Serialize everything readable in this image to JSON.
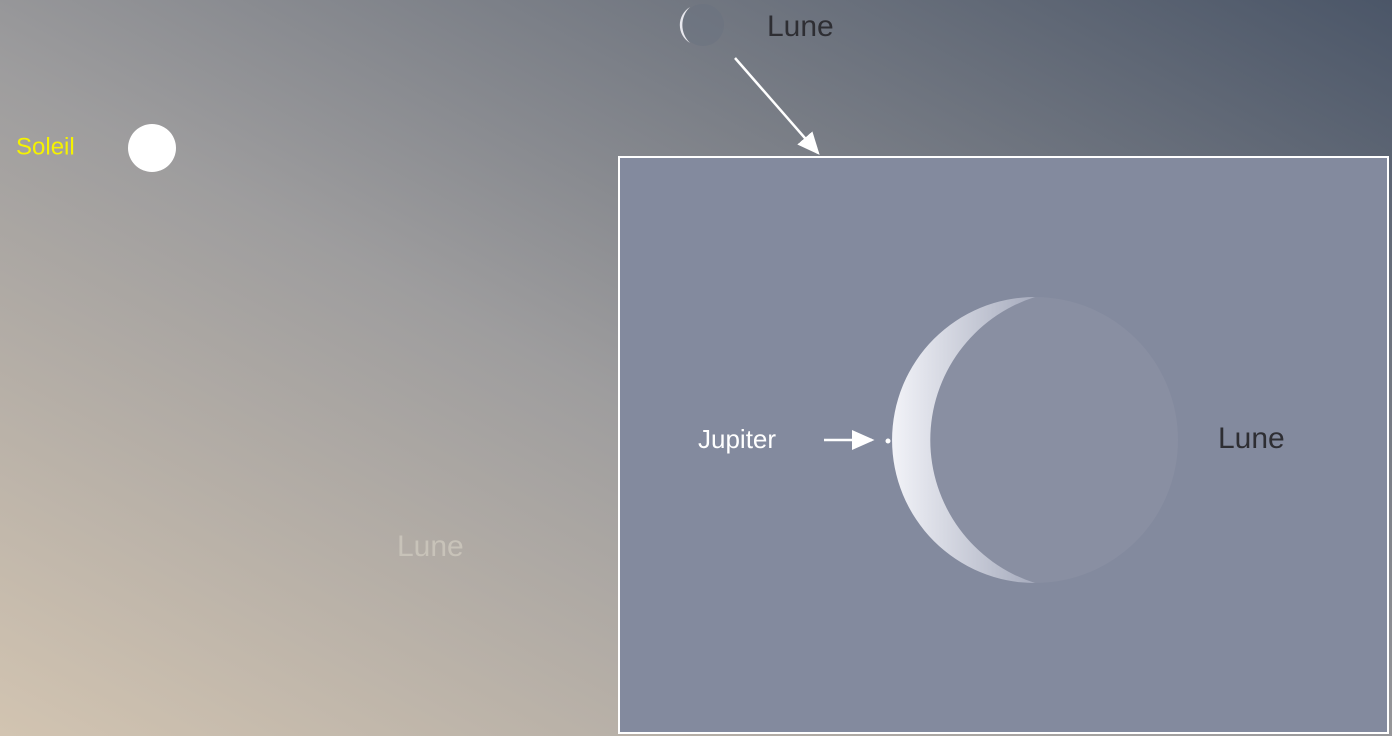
{
  "sky": {
    "sun": "Soleil",
    "moon": "Lune",
    "moon_hidden": "Lune"
  },
  "inset": {
    "planet": "Jupiter",
    "moon": "Lune"
  }
}
